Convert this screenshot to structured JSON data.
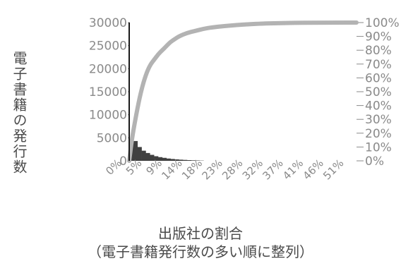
{
  "chart_data": {
    "type": "bar+line",
    "ylabel": "電子書籍の発行数",
    "xlabel_line1": "出版社の割合",
    "xlabel_line2": "（電子書籍発行数の多い順に整列）",
    "y_left_ticks": [
      "30000",
      "25000",
      "20000",
      "15000",
      "10000",
      "5000",
      "0"
    ],
    "y_left_range": [
      0,
      30000
    ],
    "y_right_ticks": [
      "100%",
      "90%",
      "80%",
      "70%",
      "60%",
      "50%",
      "40%",
      "30%",
      "20%",
      "10%",
      "0%"
    ],
    "y_right_range": [
      0,
      1
    ],
    "x_ticks": [
      "0%",
      "5%",
      "9%",
      "14%",
      "18%",
      "23%",
      "28%",
      "32%",
      "37%",
      "41%",
      "46%",
      "51%"
    ],
    "bars_publisher_rank": [
      {
        "x": 0.5,
        "y": 4300
      },
      {
        "x": 1.5,
        "y": 4300
      },
      {
        "x": 2.5,
        "y": 3000
      },
      {
        "x": 3.5,
        "y": 2200
      },
      {
        "x": 4.5,
        "y": 1700
      },
      {
        "x": 5.5,
        "y": 1300
      },
      {
        "x": 6.5,
        "y": 1000
      },
      {
        "x": 7.5,
        "y": 800
      },
      {
        "x": 8.5,
        "y": 650
      },
      {
        "x": 9.5,
        "y": 500
      },
      {
        "x": 10.5,
        "y": 400
      },
      {
        "x": 11.5,
        "y": 320
      },
      {
        "x": 12.5,
        "y": 250
      },
      {
        "x": 13.5,
        "y": 200
      },
      {
        "x": 14.5,
        "y": 150
      },
      {
        "x": 15.5,
        "y": 110
      },
      {
        "x": 16.5,
        "y": 80
      },
      {
        "x": 17.5,
        "y": 50
      }
    ],
    "cumulative_share_line": [
      {
        "x": 0,
        "y": 0.0
      },
      {
        "x": 0.5,
        "y": 0.12
      },
      {
        "x": 1,
        "y": 0.22
      },
      {
        "x": 2,
        "y": 0.38
      },
      {
        "x": 3,
        "y": 0.52
      },
      {
        "x": 4,
        "y": 0.62
      },
      {
        "x": 5,
        "y": 0.69
      },
      {
        "x": 6,
        "y": 0.73
      },
      {
        "x": 7,
        "y": 0.77
      },
      {
        "x": 8,
        "y": 0.8
      },
      {
        "x": 9,
        "y": 0.83
      },
      {
        "x": 10,
        "y": 0.86
      },
      {
        "x": 11,
        "y": 0.88
      },
      {
        "x": 12,
        "y": 0.9
      },
      {
        "x": 14,
        "y": 0.925
      },
      {
        "x": 16,
        "y": 0.94
      },
      {
        "x": 18,
        "y": 0.955
      },
      {
        "x": 20,
        "y": 0.965
      },
      {
        "x": 23,
        "y": 0.975
      },
      {
        "x": 26,
        "y": 0.982
      },
      {
        "x": 29,
        "y": 0.988
      },
      {
        "x": 32,
        "y": 0.993
      },
      {
        "x": 36,
        "y": 0.996
      },
      {
        "x": 40,
        "y": 0.998
      },
      {
        "x": 45,
        "y": 0.999
      },
      {
        "x": 51,
        "y": 1.0
      },
      {
        "x": 55,
        "y": 1.0
      }
    ],
    "x_range": [
      0,
      55
    ],
    "colors": {
      "bars": "#404040",
      "line": "#b3b3b3",
      "left_axis": "#1a1a1a",
      "tick_text": "#8a8a8a",
      "label_text": "#4a4a4a"
    }
  }
}
